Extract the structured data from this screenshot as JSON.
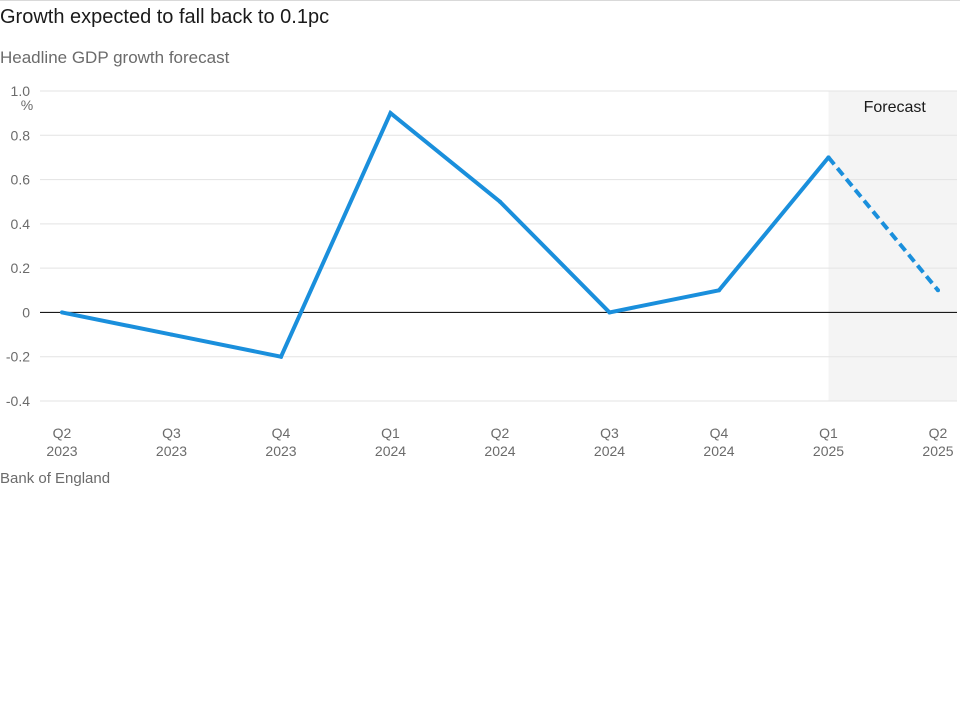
{
  "header": {
    "title": "Growth expected to fall back to 0.1pc",
    "subtitle": "Headline GDP growth forecast"
  },
  "footer": {
    "source": "Bank of England"
  },
  "colors": {
    "line": "#1a8fdc",
    "forecast_band": "#f4f4f4",
    "gridline": "#e3e3e3",
    "zero_line": "#1a1a1a"
  },
  "chart_data": {
    "type": "line",
    "title": "Growth expected to fall back to 0.1pc",
    "subtitle": "Headline GDP growth forecast",
    "y_unit": "%",
    "ylim": [
      -0.4,
      1.0
    ],
    "y_ticks": [
      {
        "value": 1.0,
        "label": "1.0"
      },
      {
        "value": 0.8,
        "label": "0.8"
      },
      {
        "value": 0.6,
        "label": "0.6"
      },
      {
        "value": 0.4,
        "label": "0.4"
      },
      {
        "value": 0.2,
        "label": "0.2"
      },
      {
        "value": 0,
        "label": "0"
      },
      {
        "value": -0.2,
        "label": "-0.2"
      },
      {
        "value": -0.4,
        "label": "-0.4"
      }
    ],
    "grid": true,
    "categories": [
      {
        "quarter": "Q2",
        "year": "2023"
      },
      {
        "quarter": "Q3",
        "year": "2023"
      },
      {
        "quarter": "Q4",
        "year": "2023"
      },
      {
        "quarter": "Q1",
        "year": "2024"
      },
      {
        "quarter": "Q2",
        "year": "2024"
      },
      {
        "quarter": "Q3",
        "year": "2024"
      },
      {
        "quarter": "Q4",
        "year": "2024"
      },
      {
        "quarter": "Q1",
        "year": "2025"
      },
      {
        "quarter": "Q2",
        "year": "2025"
      }
    ],
    "series": [
      {
        "values": [
          0.0,
          -0.1,
          -0.2,
          0.9,
          0.5,
          0.0,
          0.1,
          0.7,
          0.1
        ],
        "forecast_from_index": 7
      }
    ],
    "annotations": [
      {
        "text": "Forecast",
        "from_category": 7,
        "to_category": 8
      }
    ]
  }
}
